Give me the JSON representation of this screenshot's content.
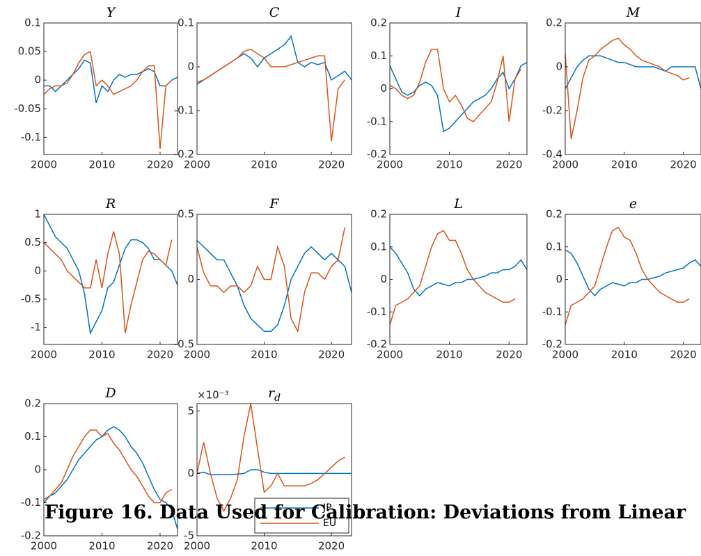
{
  "chart_data": [
    {
      "type": "line",
      "title": "Y",
      "x": [
        2000,
        2001,
        2002,
        2003,
        2004,
        2005,
        2006,
        2007,
        2008,
        2009,
        2010,
        2011,
        2012,
        2013,
        2014,
        2015,
        2016,
        2017,
        2018,
        2019,
        2020,
        2021,
        2022,
        2023
      ],
      "xlim": [
        2000,
        2023
      ],
      "xticks": [
        2000,
        2010,
        2020
      ],
      "ylim": [
        -0.13,
        0.1
      ],
      "yticks": [
        0.1,
        0.05,
        0,
        -0.05,
        -0.1
      ],
      "series": [
        {
          "color": "#0072BD",
          "values": [
            -0.01,
            -0.01,
            -0.02,
            -0.01,
            0.0,
            0.01,
            0.02,
            0.035,
            0.03,
            -0.04,
            -0.01,
            -0.02,
            0.0,
            0.01,
            0.005,
            0.01,
            0.01,
            0.015,
            0.02,
            0.015,
            -0.01,
            -0.01,
            0.0,
            0.005
          ]
        },
        {
          "color": "#D95319",
          "values": [
            -0.025,
            -0.015,
            -0.01,
            -0.01,
            -0.005,
            0.01,
            0.03,
            0.045,
            0.05,
            -0.01,
            0.0,
            -0.01,
            -0.025,
            -0.02,
            -0.015,
            -0.01,
            0.0,
            0.015,
            0.025,
            0.025,
            -0.12,
            -0.01,
            0.0,
            null
          ]
        }
      ]
    },
    {
      "type": "line",
      "title": "C",
      "x": [
        2000,
        2001,
        2002,
        2003,
        2004,
        2005,
        2006,
        2007,
        2008,
        2009,
        2010,
        2011,
        2012,
        2013,
        2014,
        2015,
        2016,
        2017,
        2018,
        2019,
        2020,
        2021,
        2022,
        2023
      ],
      "xlim": [
        2000,
        2023
      ],
      "xticks": [
        2000,
        2010,
        2020
      ],
      "ylim": [
        -0.2,
        0.1
      ],
      "yticks": [
        0.1,
        0,
        -0.1,
        -0.2
      ],
      "series": [
        {
          "color": "#0072BD",
          "values": [
            -0.04,
            -0.03,
            -0.02,
            -0.01,
            0.0,
            0.01,
            0.02,
            0.03,
            0.02,
            0.0,
            0.02,
            0.03,
            0.04,
            0.05,
            0.07,
            0.01,
            0.0,
            0.01,
            0.005,
            0.01,
            -0.03,
            -0.02,
            -0.01,
            -0.03
          ]
        },
        {
          "color": "#D95319",
          "values": [
            -0.035,
            -0.03,
            -0.02,
            -0.01,
            0.0,
            0.01,
            0.02,
            0.035,
            0.04,
            0.03,
            0.02,
            0.0,
            0.0,
            0.0,
            0.005,
            0.01,
            0.015,
            0.02,
            0.025,
            0.025,
            -0.17,
            -0.05,
            -0.03,
            null
          ]
        }
      ]
    },
    {
      "type": "line",
      "title": "I",
      "x": [
        2000,
        2001,
        2002,
        2003,
        2004,
        2005,
        2006,
        2007,
        2008,
        2009,
        2010,
        2011,
        2012,
        2013,
        2014,
        2015,
        2016,
        2017,
        2018,
        2019,
        2020,
        2021,
        2022,
        2023
      ],
      "xlim": [
        2000,
        2023
      ],
      "xticks": [
        2000,
        2010,
        2020
      ],
      "ylim": [
        -0.2,
        0.2
      ],
      "yticks": [
        0.2,
        0.1,
        0,
        -0.1,
        -0.2
      ],
      "series": [
        {
          "color": "#0072BD",
          "values": [
            0.07,
            0.03,
            -0.01,
            -0.02,
            -0.01,
            0.01,
            0.02,
            0.01,
            -0.02,
            -0.13,
            -0.12,
            -0.1,
            -0.08,
            -0.06,
            -0.04,
            -0.03,
            -0.02,
            0.0,
            0.03,
            0.05,
            0.0,
            0.03,
            0.07,
            0.08
          ]
        },
        {
          "color": "#D95319",
          "values": [
            0.01,
            0.0,
            -0.02,
            -0.03,
            -0.02,
            0.02,
            0.08,
            0.12,
            0.12,
            0.0,
            -0.04,
            -0.02,
            -0.05,
            -0.09,
            -0.1,
            -0.08,
            -0.06,
            -0.04,
            0.02,
            0.1,
            -0.1,
            0.03,
            0.06,
            null
          ]
        }
      ]
    },
    {
      "type": "line",
      "title": "M",
      "x": [
        2000,
        2001,
        2002,
        2003,
        2004,
        2005,
        2006,
        2007,
        2008,
        2009,
        2010,
        2011,
        2012,
        2013,
        2014,
        2015,
        2016,
        2017,
        2018,
        2019,
        2020,
        2021,
        2022,
        2023
      ],
      "xlim": [
        2000,
        2023
      ],
      "xticks": [
        2000,
        2010,
        2020
      ],
      "ylim": [
        -0.4,
        0.2
      ],
      "yticks": [
        0.2,
        0,
        -0.2,
        -0.4
      ],
      "series": [
        {
          "color": "#0072BD",
          "values": [
            -0.1,
            -0.05,
            0.0,
            0.03,
            0.05,
            0.05,
            0.05,
            0.04,
            0.03,
            0.02,
            0.02,
            0.01,
            0.0,
            0.0,
            0.0,
            0.0,
            -0.01,
            -0.02,
            0.0,
            0.0,
            0.0,
            0.0,
            0.0,
            -0.1
          ]
        },
        {
          "color": "#D95319",
          "values": [
            0.06,
            -0.33,
            -0.2,
            -0.05,
            0.03,
            0.05,
            0.08,
            0.1,
            0.12,
            0.13,
            0.1,
            0.08,
            0.05,
            0.03,
            0.02,
            0.01,
            0.0,
            -0.02,
            -0.03,
            -0.04,
            -0.06,
            -0.05,
            null,
            null
          ]
        }
      ]
    },
    {
      "type": "line",
      "title": "R",
      "x": [
        2000,
        2001,
        2002,
        2003,
        2004,
        2005,
        2006,
        2007,
        2008,
        2009,
        2010,
        2011,
        2012,
        2013,
        2014,
        2015,
        2016,
        2017,
        2018,
        2019,
        2020,
        2021,
        2022,
        2023
      ],
      "xlim": [
        2000,
        2023
      ],
      "xticks": [
        2000,
        2010,
        2020
      ],
      "ylim": [
        -1.3,
        1
      ],
      "yticks": [
        1,
        0.5,
        0,
        -0.5,
        -1
      ],
      "series": [
        {
          "color": "#0072BD",
          "values": [
            1.0,
            0.8,
            0.6,
            0.5,
            0.4,
            0.2,
            0.0,
            -0.4,
            -1.1,
            -0.9,
            -0.7,
            -0.3,
            -0.2,
            0.1,
            0.4,
            0.55,
            0.55,
            0.5,
            0.4,
            0.2,
            0.2,
            0.1,
            0.0,
            -0.25
          ]
        },
        {
          "color": "#D95319",
          "values": [
            0.5,
            0.4,
            0.3,
            0.2,
            0.0,
            -0.1,
            -0.2,
            -0.3,
            -0.3,
            0.2,
            -0.3,
            0.3,
            0.7,
            0.3,
            -1.1,
            -0.6,
            -0.2,
            0.2,
            0.35,
            0.3,
            0.2,
            0.1,
            0.55,
            null
          ]
        }
      ]
    },
    {
      "type": "line",
      "title": "F",
      "x": [
        2000,
        2001,
        2002,
        2003,
        2004,
        2005,
        2006,
        2007,
        2008,
        2009,
        2010,
        2011,
        2012,
        2013,
        2014,
        2015,
        2016,
        2017,
        2018,
        2019,
        2020,
        2021,
        2022,
        2023
      ],
      "xlim": [
        2000,
        2023
      ],
      "xticks": [
        2000,
        2010,
        2020
      ],
      "ylim": [
        -0.5,
        0.5
      ],
      "yticks": [
        0.5,
        0,
        -0.5
      ],
      "series": [
        {
          "color": "#0072BD",
          "values": [
            0.3,
            0.25,
            0.2,
            0.15,
            0.15,
            0.05,
            -0.05,
            -0.2,
            -0.3,
            -0.35,
            -0.4,
            -0.4,
            -0.35,
            -0.2,
            0.0,
            0.1,
            0.2,
            0.25,
            0.2,
            0.15,
            0.2,
            0.15,
            0.1,
            -0.1
          ]
        },
        {
          "color": "#D95319",
          "values": [
            0.25,
            0.05,
            -0.05,
            -0.05,
            -0.1,
            -0.05,
            -0.05,
            -0.1,
            -0.05,
            0.1,
            0.0,
            0.0,
            0.25,
            0.1,
            -0.3,
            -0.4,
            -0.1,
            0.05,
            0.05,
            0.0,
            0.1,
            0.15,
            0.4,
            null
          ]
        }
      ]
    },
    {
      "type": "line",
      "title": "L",
      "x": [
        2000,
        2001,
        2002,
        2003,
        2004,
        2005,
        2006,
        2007,
        2008,
        2009,
        2010,
        2011,
        2012,
        2013,
        2014,
        2015,
        2016,
        2017,
        2018,
        2019,
        2020,
        2021,
        2022,
        2023
      ],
      "xlim": [
        2000,
        2023
      ],
      "xticks": [
        2000,
        2010,
        2020
      ],
      "ylim": [
        -0.2,
        0.2
      ],
      "yticks": [
        0.2,
        0.1,
        0,
        -0.1,
        -0.2
      ],
      "series": [
        {
          "color": "#0072BD",
          "values": [
            0.1,
            0.08,
            0.05,
            0.02,
            -0.03,
            -0.05,
            -0.03,
            -0.02,
            -0.01,
            -0.015,
            -0.02,
            -0.01,
            -0.01,
            0.0,
            0.0,
            0.005,
            0.01,
            0.02,
            0.02,
            0.03,
            0.03,
            0.04,
            0.06,
            0.03
          ]
        },
        {
          "color": "#D95319",
          "values": [
            -0.14,
            -0.08,
            -0.07,
            -0.06,
            -0.04,
            -0.02,
            0.04,
            0.1,
            0.14,
            0.15,
            0.12,
            0.12,
            0.08,
            0.03,
            0.0,
            -0.02,
            -0.04,
            -0.05,
            -0.06,
            -0.07,
            -0.07,
            -0.06,
            null,
            null
          ]
        }
      ]
    },
    {
      "type": "line",
      "title": "e",
      "x": [
        2000,
        2001,
        2002,
        2003,
        2004,
        2005,
        2006,
        2007,
        2008,
        2009,
        2010,
        2011,
        2012,
        2013,
        2014,
        2015,
        2016,
        2017,
        2018,
        2019,
        2020,
        2021,
        2022,
        2023
      ],
      "xlim": [
        2000,
        2023
      ],
      "xticks": [
        2000,
        2010,
        2020
      ],
      "ylim": [
        -0.2,
        0.2
      ],
      "yticks": [
        0.2,
        0.1,
        0,
        -0.1,
        -0.2
      ],
      "series": [
        {
          "color": "#0072BD",
          "values": [
            0.09,
            0.08,
            0.05,
            0.01,
            -0.03,
            -0.05,
            -0.03,
            -0.02,
            -0.01,
            -0.015,
            -0.02,
            -0.01,
            -0.01,
            0.0,
            0.0,
            0.005,
            0.01,
            0.02,
            0.025,
            0.03,
            0.035,
            0.05,
            0.06,
            0.04
          ]
        },
        {
          "color": "#D95319",
          "values": [
            -0.14,
            -0.08,
            -0.07,
            -0.06,
            -0.04,
            -0.02,
            0.04,
            0.1,
            0.15,
            0.16,
            0.13,
            0.12,
            0.08,
            0.03,
            0.0,
            -0.02,
            -0.04,
            -0.05,
            -0.06,
            -0.07,
            -0.07,
            -0.06,
            null,
            null
          ]
        }
      ]
    },
    {
      "type": "line",
      "title": "D",
      "x": [
        2000,
        2001,
        2002,
        2003,
        2004,
        2005,
        2006,
        2007,
        2008,
        2009,
        2010,
        2011,
        2012,
        2013,
        2014,
        2015,
        2016,
        2017,
        2018,
        2019,
        2020,
        2021,
        2022,
        2023
      ],
      "xlim": [
        2000,
        2023
      ],
      "xticks": [
        2000,
        2010,
        2020
      ],
      "ylim": [
        -0.2,
        0.2
      ],
      "yticks": [
        0.2,
        0.1,
        0,
        -0.1,
        -0.2
      ],
      "series": [
        {
          "color": "#0072BD",
          "values": [
            -0.1,
            -0.08,
            -0.07,
            -0.05,
            -0.03,
            0.0,
            0.03,
            0.05,
            0.07,
            0.09,
            0.1,
            0.12,
            0.13,
            0.12,
            0.1,
            0.07,
            0.05,
            0.02,
            -0.02,
            -0.06,
            -0.09,
            -0.1,
            -0.12,
            -0.18
          ]
        },
        {
          "color": "#D95319",
          "values": [
            -0.09,
            -0.08,
            -0.06,
            -0.04,
            0.0,
            0.04,
            0.07,
            0.1,
            0.12,
            0.12,
            0.1,
            0.11,
            0.08,
            0.06,
            0.03,
            0.0,
            -0.02,
            -0.05,
            -0.08,
            -0.1,
            -0.1,
            -0.07,
            -0.06,
            null
          ]
        }
      ]
    },
    {
      "type": "line",
      "title": "r",
      "title_subscript": "d",
      "y_offset_text": "×10⁻³",
      "legend": "lower right",
      "x": [
        2000,
        2001,
        2002,
        2003,
        2004,
        2005,
        2006,
        2007,
        2008,
        2009,
        2010,
        2011,
        2012,
        2013,
        2014,
        2015,
        2016,
        2017,
        2018,
        2019,
        2020,
        2021,
        2022,
        2023
      ],
      "xlim": [
        2000,
        2023
      ],
      "xticks": [
        2000,
        2010,
        2020
      ],
      "ylim": [
        -5,
        5.6
      ],
      "yticks": [
        5,
        0,
        -5
      ],
      "series": [
        {
          "name": "JP",
          "color": "#0072BD",
          "values": [
            0,
            0.1,
            -0.1,
            -0.1,
            -0.1,
            -0.1,
            -0.05,
            0,
            0.3,
            0.3,
            0.1,
            0,
            0,
            0,
            0,
            0,
            0,
            0,
            0,
            0,
            0,
            0,
            0,
            0
          ]
        },
        {
          "name": "EU",
          "color": "#D95319",
          "values": [
            0,
            2.5,
            0,
            -2,
            -3,
            -2,
            -0.5,
            3,
            5.6,
            2,
            -1.5,
            -1,
            0,
            -1,
            -1,
            -1,
            -1,
            -0.8,
            -0.5,
            0,
            0.5,
            1,
            1.3,
            null
          ]
        }
      ]
    }
  ],
  "caption": "Figure 16. Data Used for Calibration: Deviations from Linear"
}
